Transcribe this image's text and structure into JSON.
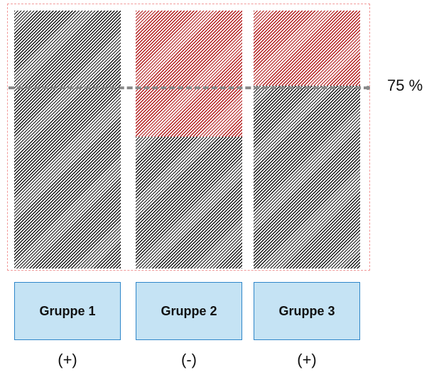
{
  "threshold": {
    "label": "75 %",
    "value_percent": 75
  },
  "groups": [
    {
      "label": "Gruppe 1",
      "sign": "(+)",
      "red_fraction": 0.0
    },
    {
      "label": "Gruppe 2",
      "sign": "(-)",
      "red_fraction": 0.49
    },
    {
      "label": "Gruppe 3",
      "sign": "(+)",
      "red_fraction": 0.29
    }
  ],
  "colors": {
    "hatch_black": "#1a1a1a",
    "hatch_red": "#b31e1e",
    "frame_dashed": "#f29a9a",
    "threshold_line": "#8a8a8a",
    "box_fill": "#c5e3f4",
    "box_border": "#2e86c9"
  }
}
